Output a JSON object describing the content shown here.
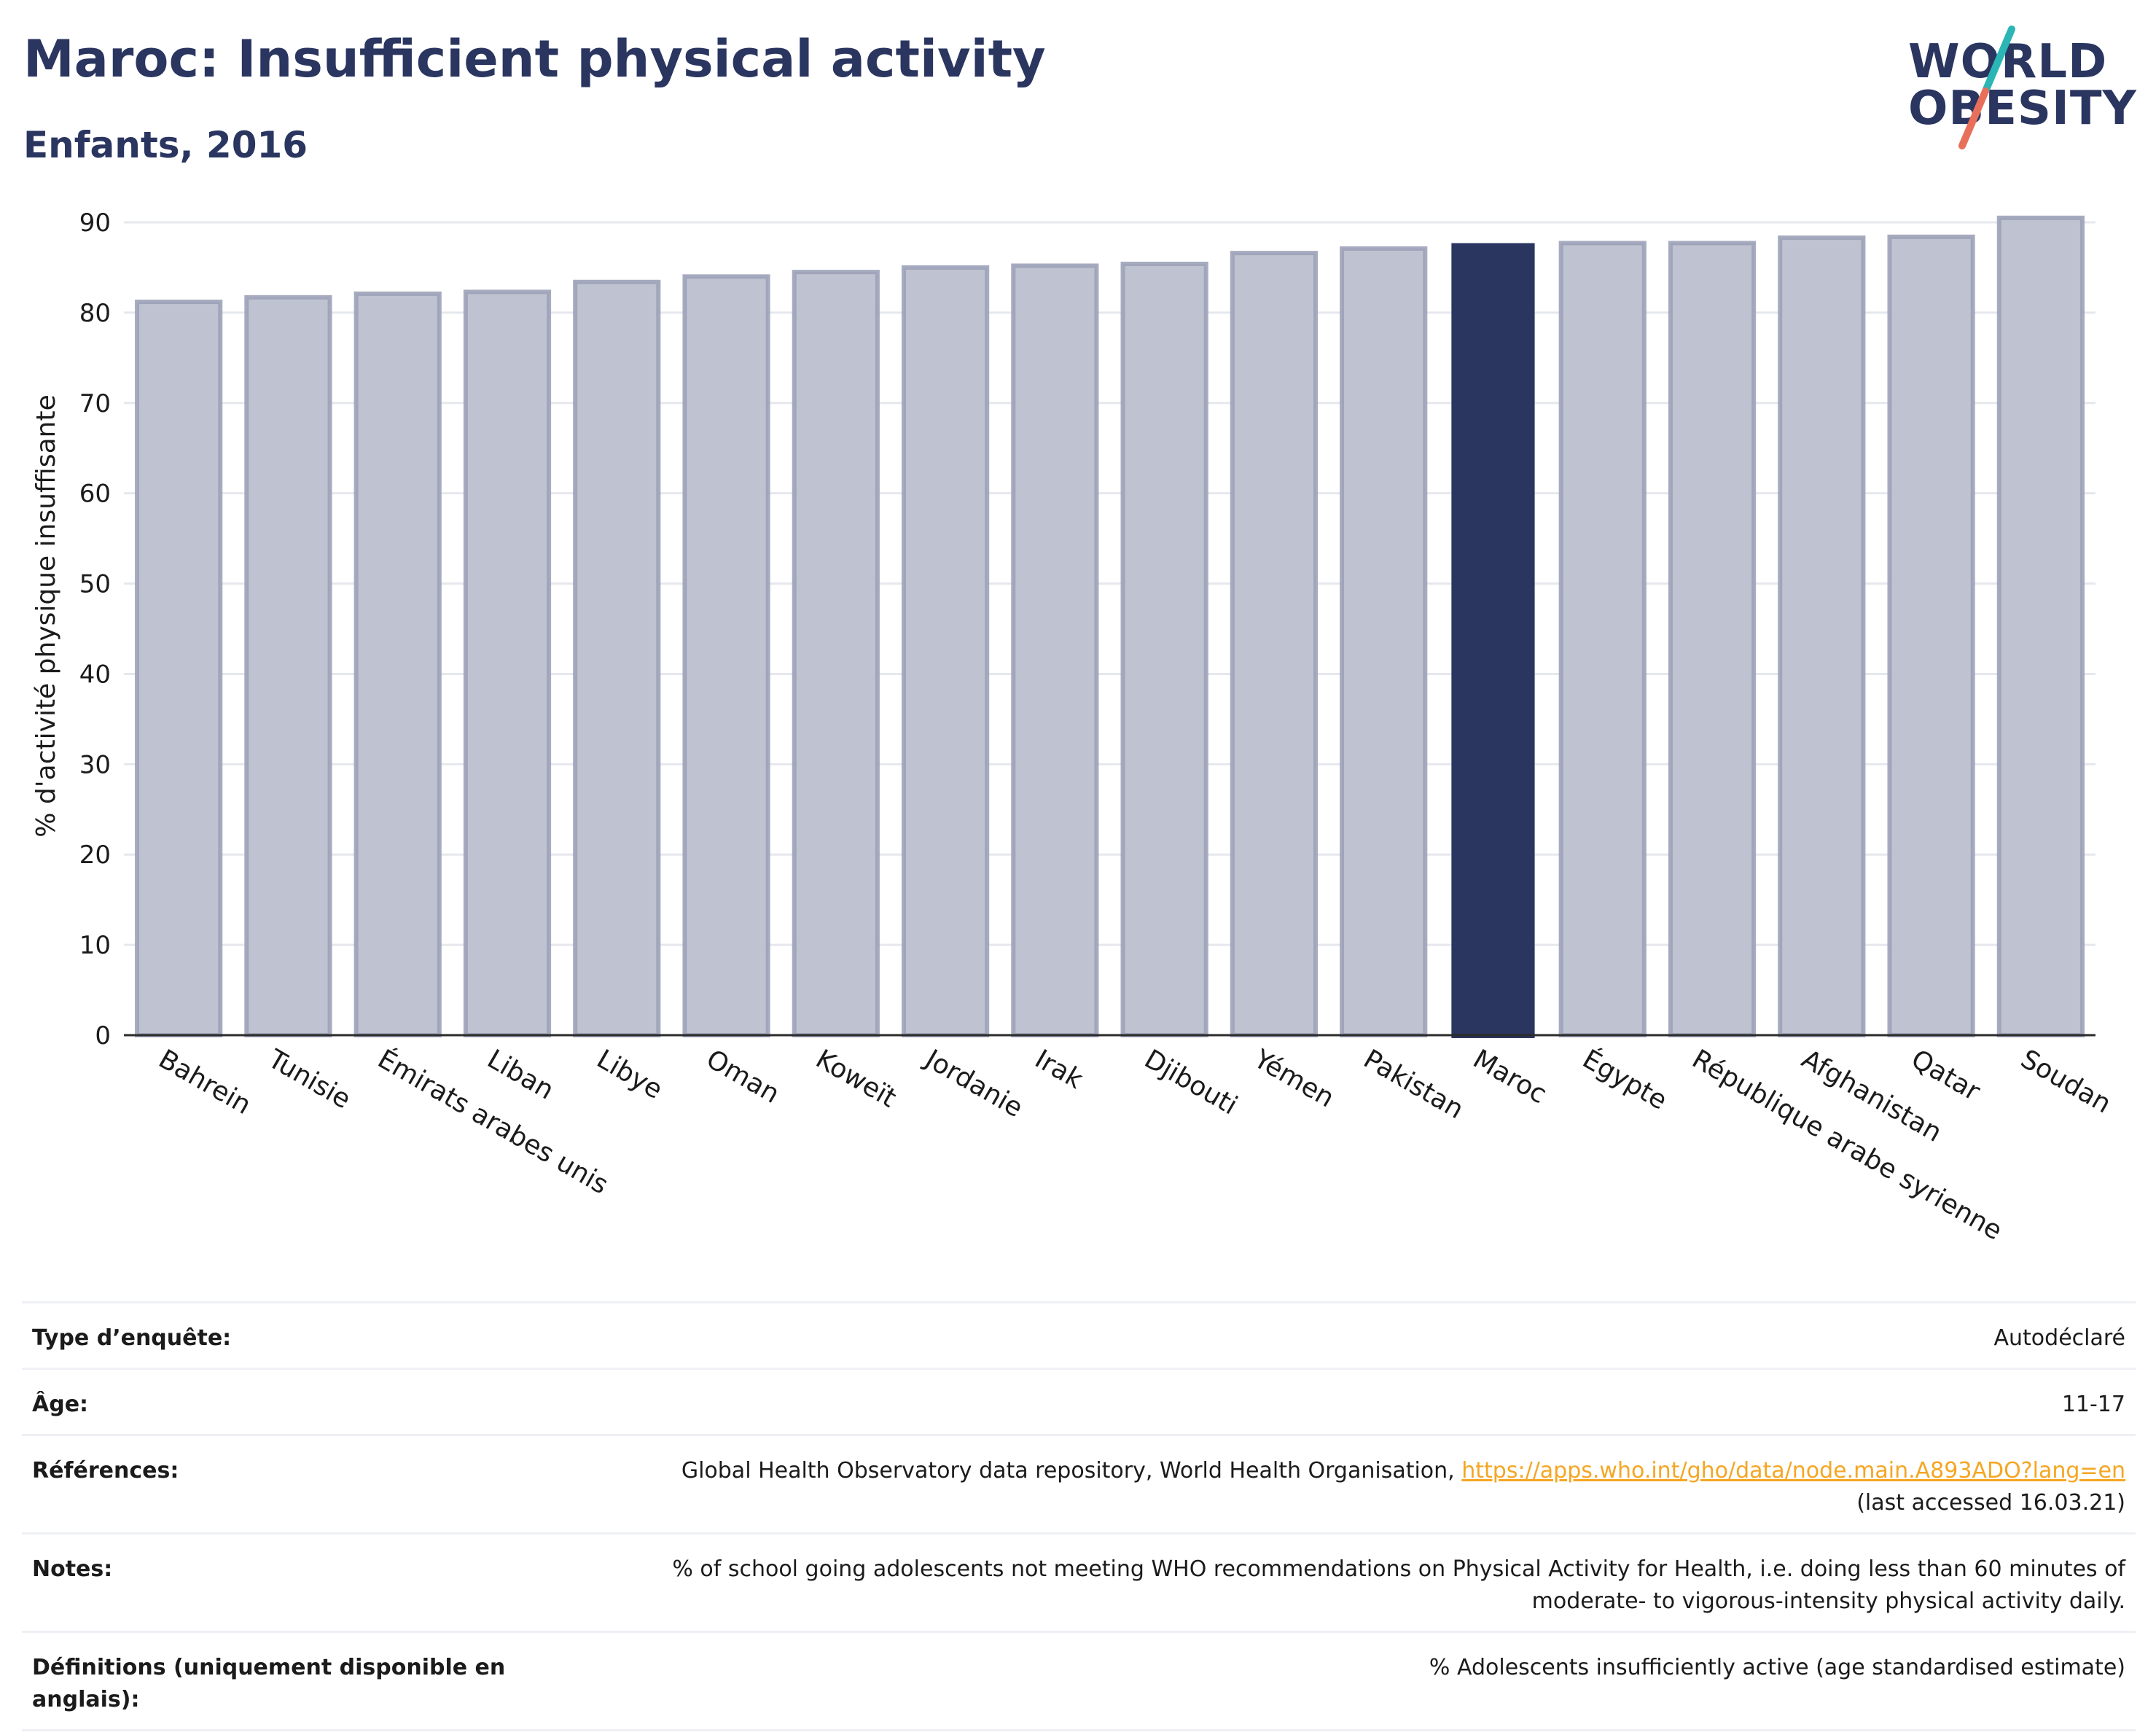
{
  "header": {
    "title": "Maroc: Insufficient physical activity",
    "subtitle": "Enfants, 2016"
  },
  "logo": {
    "line1": "WORLD",
    "line2": "OBESITY",
    "alt": "World Obesity logo"
  },
  "colors": {
    "highlight": "#2a3560",
    "bar": "#bfc2d0",
    "bar_outline": "#9da2b8",
    "accent_teal": "#2bb5b5",
    "accent_coral": "#e8705a",
    "link": "#f5a623"
  },
  "chart_data": {
    "type": "bar",
    "title": "Maroc: Insufficient physical activity",
    "subtitle": "Enfants, 2016",
    "xlabel": "",
    "ylabel": "% d'activité physique insuffisante",
    "ylim": [
      0,
      90
    ],
    "yticks": [
      0,
      10,
      20,
      30,
      40,
      50,
      60,
      70,
      80,
      90
    ],
    "grid": true,
    "highlight": "Maroc",
    "categories": [
      "Bahrein",
      "Tunisie",
      "Émirats arabes unis",
      "Liban",
      "Libye",
      "Oman",
      "Koweït",
      "Jordanie",
      "Irak",
      "Djibouti",
      "Yémen",
      "Pakistan",
      "Maroc",
      "Égypte",
      "République arabe syrienne",
      "Afghanistan",
      "Qatar",
      "Soudan"
    ],
    "values": [
      81.2,
      81.7,
      82.1,
      82.3,
      83.4,
      84.0,
      84.5,
      85.0,
      85.2,
      85.4,
      86.6,
      87.1,
      87.7,
      87.7,
      87.7,
      88.3,
      88.4,
      90.5
    ]
  },
  "meta": [
    {
      "label": "Type d’enquête:",
      "value": "Autodéclaré"
    },
    {
      "label": "Âge:",
      "value": "11-17"
    },
    {
      "label": "Références:",
      "value": "Global Health Observatory data repository, World Health Organisation,",
      "link": "https://apps.who.int/gho/data/node.main.A893ADO?lang=en",
      "value2": "(last accessed 16.03.21)"
    },
    {
      "label": "Notes:",
      "value": "% of school going adolescents not meeting WHO recommendations on Physical Activity for Health, i.e. doing less than 60 minutes of moderate- to vigorous-intensity physical activity daily."
    },
    {
      "label": "Définitions (uniquement disponible en anglais):",
      "value": "% Adolescents insufficiently active (age standardised estimate)"
    }
  ]
}
